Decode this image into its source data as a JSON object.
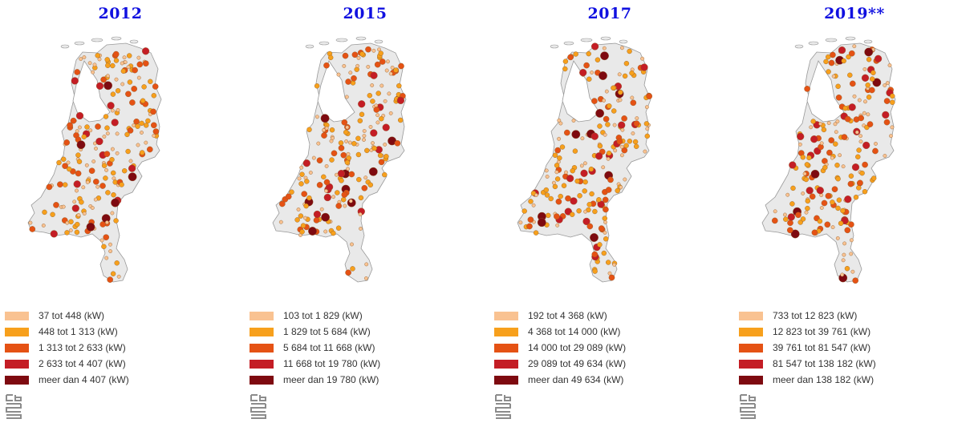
{
  "class_colors": [
    "#f9c291",
    "#f7a01c",
    "#e55214",
    "#c41d25",
    "#7e0a10"
  ],
  "panels": [
    {
      "title": "2012",
      "legend": [
        "37 tot 448 (kW)",
        "448 tot 1 313 (kW)",
        "1 313 tot 2 633 (kW)",
        "2 633 tot 4 407 (kW)",
        "meer dan 4 407 (kW)"
      ]
    },
    {
      "title": "2015",
      "legend": [
        "103 tot 1 829 (kW)",
        "1 829 tot 5 684 (kW)",
        "5 684 tot 11 668 (kW)",
        "11 668 tot 19 780 (kW)",
        "meer dan 19 780 (kW)"
      ]
    },
    {
      "title": "2017",
      "legend": [
        "192 tot 4 368 (kW)",
        "4 368 tot 14 000 (kW)",
        "14 000 tot 29 089 (kW)",
        "29 089 tot 49 634 (kW)",
        "meer dan 49 634 (kW)"
      ]
    },
    {
      "title": "2019**",
      "legend": [
        "733 tot 12 823 (kW)",
        "12 823 tot 39 761 (kW)",
        "39 761 tot 81 547 (kW)",
        "81 547 tot 138 182 (kW)",
        "meer dan 138 182 (kW)"
      ]
    }
  ]
}
